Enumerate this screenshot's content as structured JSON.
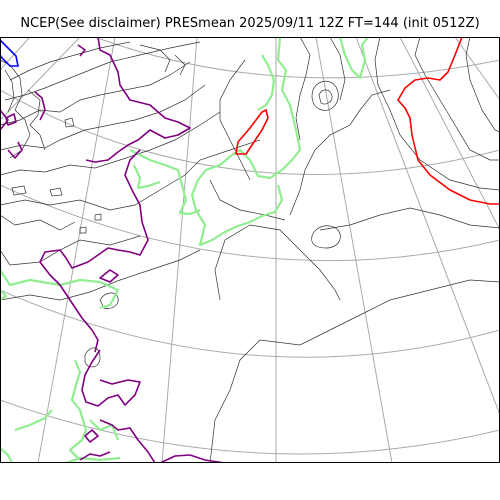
{
  "figure": {
    "title": "NCEP(See disclaimer) PRESmean 2025/09/11 12Z FT=144 (init 0512Z)"
  },
  "colors": {
    "background": "#ffffff",
    "frame": "#000000",
    "graticule": "#aaaaaa",
    "pressure_contour": "#333333",
    "coastline": "#90ee90",
    "contour_purple": "#800080",
    "contour_red": "#ff0000",
    "contour_blue": "#0000ff"
  }
}
